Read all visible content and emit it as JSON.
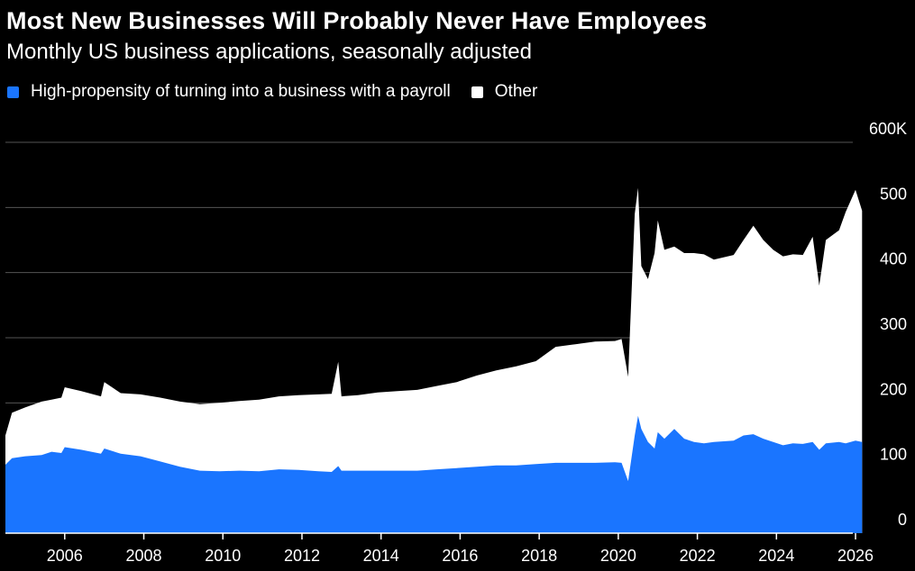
{
  "header": {
    "title": "Most New Businesses Will Probably Never Have Employees",
    "subtitle": "Monthly US business applications, seasonally adjusted"
  },
  "legend": {
    "items": [
      {
        "label": "High-propensity of turning into a business with a payroll",
        "color": "#1a75ff"
      },
      {
        "label": "Other",
        "color": "#ffffff"
      }
    ]
  },
  "colors": {
    "background": "#000000",
    "high_propensity": "#1a75ff",
    "other": "#ffffff",
    "gridline": "#555555"
  },
  "chart_data": {
    "type": "area",
    "stacked": true,
    "title": "Most New Businesses Will Probably Never Have Employees",
    "subtitle": "Monthly US business applications, seasonally adjusted",
    "xlabel": "",
    "ylabel": "",
    "x_ticks": [
      "2006",
      "2008",
      "2010",
      "2012",
      "2014",
      "2016",
      "2018",
      "2020",
      "2022",
      "2024",
      "2026"
    ],
    "y_ticks": [
      "0",
      "100",
      "200",
      "300",
      "400",
      "500",
      "600K"
    ],
    "ylim": [
      0,
      600000
    ],
    "xlim": [
      "2004-07",
      "2026-04"
    ],
    "grid": true,
    "legend_position": "top-left",
    "y_axis_side": "right",
    "series": [
      {
        "name": "High-propensity of turning into a business with a payroll",
        "color": "#1a75ff",
        "points": [
          [
            "2004-07",
            105000
          ],
          [
            "2004-09",
            115000
          ],
          [
            "2005-01",
            118000
          ],
          [
            "2005-06",
            120000
          ],
          [
            "2005-09",
            125000
          ],
          [
            "2005-12",
            123000
          ],
          [
            "2006-01",
            132000
          ],
          [
            "2006-06",
            128000
          ],
          [
            "2006-12",
            122000
          ],
          [
            "2007-01",
            130000
          ],
          [
            "2007-06",
            122000
          ],
          [
            "2007-12",
            118000
          ],
          [
            "2008-06",
            110000
          ],
          [
            "2008-12",
            102000
          ],
          [
            "2009-06",
            96000
          ],
          [
            "2009-12",
            95000
          ],
          [
            "2010-06",
            96000
          ],
          [
            "2010-12",
            95000
          ],
          [
            "2011-06",
            98000
          ],
          [
            "2011-12",
            97000
          ],
          [
            "2012-06",
            95000
          ],
          [
            "2012-10",
            94000
          ],
          [
            "2012-12",
            103000
          ],
          [
            "2013-01",
            96000
          ],
          [
            "2013-06",
            96000
          ],
          [
            "2013-12",
            96000
          ],
          [
            "2014-06",
            96000
          ],
          [
            "2014-12",
            96000
          ],
          [
            "2015-06",
            98000
          ],
          [
            "2015-12",
            100000
          ],
          [
            "2016-06",
            102000
          ],
          [
            "2016-12",
            104000
          ],
          [
            "2017-06",
            104000
          ],
          [
            "2017-12",
            106000
          ],
          [
            "2018-06",
            108000
          ],
          [
            "2018-12",
            108000
          ],
          [
            "2019-06",
            108000
          ],
          [
            "2019-12",
            109000
          ],
          [
            "2020-02",
            108000
          ],
          [
            "2020-04",
            80000
          ],
          [
            "2020-06",
            150000
          ],
          [
            "2020-07",
            180000
          ],
          [
            "2020-08",
            160000
          ],
          [
            "2020-10",
            140000
          ],
          [
            "2020-12",
            130000
          ],
          [
            "2021-01",
            155000
          ],
          [
            "2021-03",
            145000
          ],
          [
            "2021-06",
            160000
          ],
          [
            "2021-09",
            145000
          ],
          [
            "2021-12",
            140000
          ],
          [
            "2022-03",
            138000
          ],
          [
            "2022-06",
            140000
          ],
          [
            "2022-12",
            142000
          ],
          [
            "2023-03",
            150000
          ],
          [
            "2023-06",
            152000
          ],
          [
            "2023-09",
            145000
          ],
          [
            "2023-12",
            140000
          ],
          [
            "2024-03",
            135000
          ],
          [
            "2024-06",
            138000
          ],
          [
            "2024-09",
            137000
          ],
          [
            "2024-12",
            140000
          ],
          [
            "2025-02",
            128000
          ],
          [
            "2025-04",
            138000
          ],
          [
            "2025-08",
            140000
          ],
          [
            "2025-10",
            138000
          ],
          [
            "2026-01",
            142000
          ],
          [
            "2026-03",
            140000
          ]
        ]
      },
      {
        "name": "Other",
        "color": "#ffffff",
        "points": [
          [
            "2004-07",
            45000
          ],
          [
            "2004-09",
            70000
          ],
          [
            "2005-01",
            75000
          ],
          [
            "2005-06",
            82000
          ],
          [
            "2005-09",
            80000
          ],
          [
            "2005-12",
            85000
          ],
          [
            "2006-01",
            92000
          ],
          [
            "2006-06",
            90000
          ],
          [
            "2006-12",
            88000
          ],
          [
            "2007-01",
            102000
          ],
          [
            "2007-06",
            93000
          ],
          [
            "2007-12",
            95000
          ],
          [
            "2008-06",
            98000
          ],
          [
            "2008-12",
            100000
          ],
          [
            "2009-06",
            102000
          ],
          [
            "2009-12",
            105000
          ],
          [
            "2010-06",
            107000
          ],
          [
            "2010-12",
            110000
          ],
          [
            "2011-06",
            112000
          ],
          [
            "2011-12",
            115000
          ],
          [
            "2012-06",
            118000
          ],
          [
            "2012-10",
            120000
          ],
          [
            "2012-12",
            160000
          ],
          [
            "2013-01",
            114000
          ],
          [
            "2013-06",
            116000
          ],
          [
            "2013-12",
            120000
          ],
          [
            "2014-06",
            122000
          ],
          [
            "2014-12",
            124000
          ],
          [
            "2015-06",
            128000
          ],
          [
            "2015-12",
            132000
          ],
          [
            "2016-06",
            140000
          ],
          [
            "2016-12",
            146000
          ],
          [
            "2017-06",
            152000
          ],
          [
            "2017-12",
            158000
          ],
          [
            "2018-06",
            178000
          ],
          [
            "2018-12",
            182000
          ],
          [
            "2019-06",
            186000
          ],
          [
            "2019-12",
            186000
          ],
          [
            "2020-02",
            190000
          ],
          [
            "2020-04",
            160000
          ],
          [
            "2020-06",
            340000
          ],
          [
            "2020-07",
            350000
          ],
          [
            "2020-08",
            250000
          ],
          [
            "2020-10",
            250000
          ],
          [
            "2020-12",
            300000
          ],
          [
            "2021-01",
            325000
          ],
          [
            "2021-03",
            290000
          ],
          [
            "2021-06",
            280000
          ],
          [
            "2021-09",
            285000
          ],
          [
            "2021-12",
            290000
          ],
          [
            "2022-03",
            290000
          ],
          [
            "2022-06",
            280000
          ],
          [
            "2022-12",
            285000
          ],
          [
            "2023-03",
            300000
          ],
          [
            "2023-06",
            320000
          ],
          [
            "2023-09",
            305000
          ],
          [
            "2023-12",
            295000
          ],
          [
            "2024-03",
            290000
          ],
          [
            "2024-06",
            290000
          ],
          [
            "2024-09",
            290000
          ],
          [
            "2024-12",
            315000
          ],
          [
            "2025-02",
            252000
          ],
          [
            "2025-04",
            312000
          ],
          [
            "2025-08",
            325000
          ],
          [
            "2025-10",
            355000
          ],
          [
            "2026-01",
            385000
          ],
          [
            "2026-03",
            355000
          ]
        ]
      }
    ]
  }
}
